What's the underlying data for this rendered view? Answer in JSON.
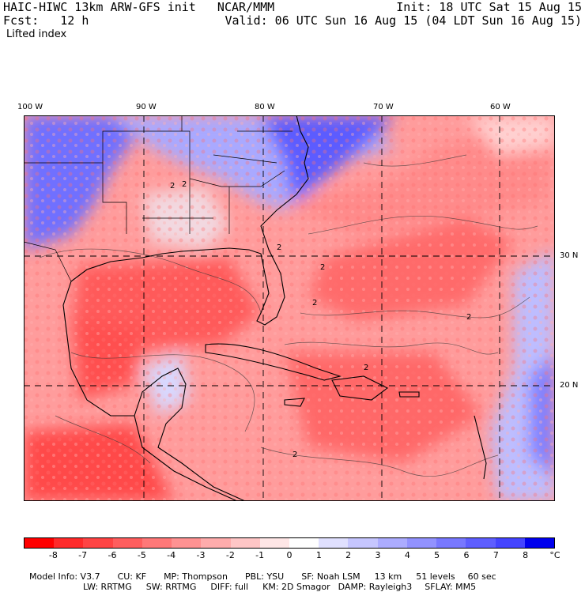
{
  "header": {
    "line1_left": "HAIC-HIWC 13km ARW-GFS init   NCAR/MMM",
    "line1_right": "Init: 18 UTC Sat 15 Aug 15",
    "line2_left": "Fcst:   12 h",
    "line2_right": "Valid: 06 UTC Sun 16 Aug 15 (04 LDT Sun 16 Aug 15)",
    "field": "Lifted index"
  },
  "map": {
    "lon_labels": [
      "100 W",
      "90 W",
      "80 W",
      "70 W",
      "60 W"
    ],
    "lat_labels": [
      "30 N",
      "20 N"
    ],
    "contour_label": "2"
  },
  "colorbar": {
    "labels": [
      "-8",
      "-7",
      "-6",
      "-5",
      "-4",
      "-3",
      "-2",
      "-1",
      "0",
      "1",
      "2",
      "3",
      "4",
      "5",
      "6",
      "7",
      "8"
    ],
    "unit": "°C",
    "colors": [
      "#ff0000",
      "#ff2a2a",
      "#ff4444",
      "#ff5e5e",
      "#ff7878",
      "#ff9292",
      "#ffacac",
      "#ffc6c6",
      "#ffe6e6",
      "#ffffff",
      "#e0e0ff",
      "#c6c6ff",
      "#acacff",
      "#9292ff",
      "#7878ff",
      "#5e5eff",
      "#4444ff",
      "#0000ee"
    ]
  },
  "footer": {
    "line1": [
      "Model Info: V3.7",
      "CU: KF",
      "MP: Thompson",
      "PBL: YSU",
      "SF: Noah LSM",
      "13 km",
      "51 levels",
      "60 sec"
    ],
    "line2": [
      "LW: RRTMG",
      "SW: RRTMG",
      "DIFF: full",
      "KM: 2D Smagor",
      "DAMP: Rayleigh3",
      "SFLAY: MM5"
    ]
  }
}
